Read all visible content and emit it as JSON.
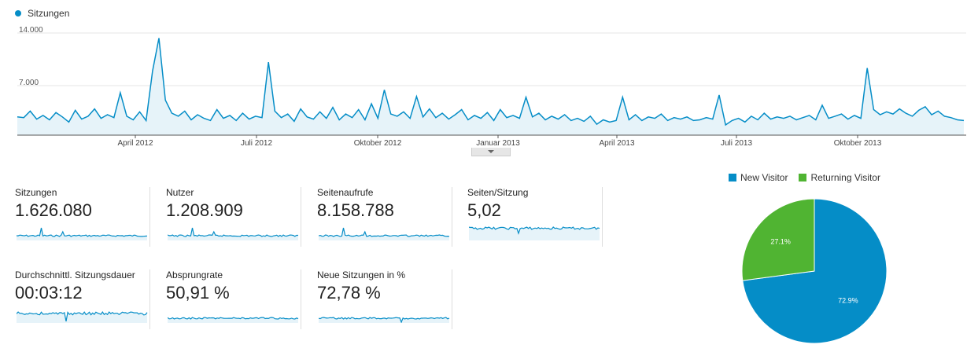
{
  "main_chart": {
    "legend": "Sitzungen",
    "series_color": "#058dc7",
    "y_ticks": [
      "14.000",
      "7.000"
    ],
    "x_labels": [
      "April 2012",
      "Juli 2012",
      "Oktober 2012",
      "Januar 2013",
      "April 2013",
      "Juli 2013",
      "Oktober 2013"
    ]
  },
  "metrics": [
    {
      "label": "Sitzungen",
      "value": "1.626.080"
    },
    {
      "label": "Nutzer",
      "value": "1.208.909"
    },
    {
      "label": "Seitenaufrufe",
      "value": "8.158.788"
    },
    {
      "label": "Seiten/Sitzung",
      "value": "5,02"
    },
    {
      "label": "Durchschnittl. Sitzungsdauer",
      "value": "00:03:12"
    },
    {
      "label": "Absprungrate",
      "value": "50,91 %"
    },
    {
      "label": "Neue Sitzungen in %",
      "value": "72,78 %"
    }
  ],
  "pie": {
    "legend": [
      {
        "label": "New Visitor",
        "color": "#058dc7"
      },
      {
        "label": "Returning Visitor",
        "color": "#50b432"
      }
    ],
    "labels": [
      "72.9%",
      "27.1%"
    ]
  },
  "chart_data": [
    {
      "type": "area",
      "title": "",
      "series": [
        {
          "name": "Sitzungen",
          "values": [
            2500,
            2400,
            3300,
            2200,
            2700,
            2100,
            3100,
            2500,
            1800,
            3400,
            2200,
            2600,
            3600,
            2300,
            2800,
            2400,
            5800,
            2600,
            2100,
            3200,
            2000,
            8800,
            13300,
            4800,
            3000,
            2600,
            3300,
            2100,
            2800,
            2300,
            2000,
            3500,
            2300,
            2700,
            2000,
            3000,
            2200,
            2600,
            2400,
            10000,
            3300,
            2400,
            2900,
            1900,
            3600,
            2500,
            2200,
            3200,
            2300,
            3800,
            2100,
            2900,
            2400,
            3500,
            2100,
            4300,
            2300,
            6200,
            2900,
            2600,
            3200,
            2300,
            5300,
            2500,
            3600,
            2400,
            3000,
            2200,
            2800,
            3500,
            2100,
            2700,
            2300,
            3100,
            2000,
            3500,
            2400,
            2700,
            2300,
            5200,
            2500,
            3000,
            2100,
            2600,
            2200,
            2800,
            2000,
            2300,
            1900,
            2600,
            1500,
            2100,
            1800,
            2000,
            5200,
            2100,
            2800,
            2000,
            2500,
            2300,
            2900,
            2000,
            2400,
            2200,
            2500,
            2000,
            2100,
            2400,
            2200,
            5500,
            1400,
            2000,
            2300,
            1800,
            2600,
            2100,
            3000,
            2200,
            2500,
            2300,
            2600,
            2100,
            2400,
            2700,
            2100,
            4100,
            2300,
            2600,
            2900,
            2200,
            2700,
            2300,
            9200,
            3500,
            2800,
            3200,
            2900,
            3600,
            3000,
            2600,
            3400,
            3900,
            2800,
            3300,
            2600,
            2400,
            2100,
            2000
          ]
        }
      ],
      "x_labels": [
        "April 2012",
        "Juli 2012",
        "Oktober 2012",
        "Januar 2013",
        "April 2013",
        "Juli 2013",
        "Oktober 2013"
      ],
      "y_ticks": [
        0,
        7000,
        14000
      ],
      "ylim": [
        0,
        14000
      ],
      "grid": true,
      "legend_position": "top-left"
    },
    {
      "type": "pie",
      "categories": [
        "New Visitor",
        "Returning Visitor"
      ],
      "values": [
        72.9,
        27.1
      ],
      "colors": [
        "#058dc7",
        "#50b432"
      ],
      "legend_position": "top"
    }
  ]
}
